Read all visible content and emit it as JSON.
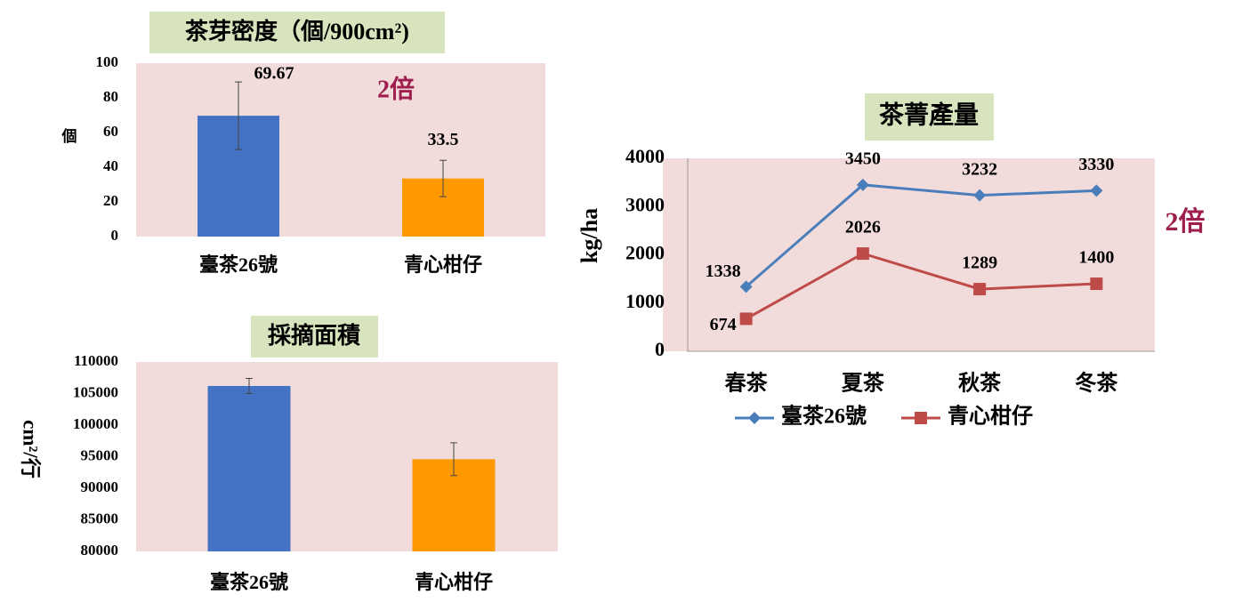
{
  "chart_data": [
    {
      "type": "bar",
      "title": "茶芽密度（個/900cm²)",
      "ylabel": "個",
      "categories": [
        "臺茶26號",
        "青心柑仔"
      ],
      "values": [
        69.67,
        33.5
      ],
      "errors": [
        19.5,
        10.5
      ],
      "colors": [
        "#4472c4",
        "#ff9900"
      ],
      "show_values": true,
      "ylim": [
        0,
        100
      ],
      "yticks": [
        0,
        20,
        40,
        60,
        80,
        100
      ],
      "annotation": "2倍"
    },
    {
      "type": "bar",
      "title": "採摘面積",
      "ylabel": "cm²/行",
      "categories": [
        "臺茶26號",
        "青心柑仔"
      ],
      "values": [
        106200,
        94600
      ],
      "errors": [
        1200,
        2600
      ],
      "colors": [
        "#4472c4",
        "#ff9900"
      ],
      "show_values": false,
      "ylim": [
        80000,
        110000
      ],
      "yticks": [
        80000,
        85000,
        90000,
        95000,
        100000,
        105000,
        110000
      ]
    },
    {
      "type": "line",
      "title": "茶菁產量",
      "ylabel": "kg/ha",
      "categories": [
        "春茶",
        "夏茶",
        "秋茶",
        "冬茶"
      ],
      "series": [
        {
          "name": "臺茶26號",
          "color": "#4a7ebb",
          "marker": "diamond",
          "values": [
            1338,
            3450,
            3232,
            3330
          ]
        },
        {
          "name": "青心柑仔",
          "color": "#be4b48",
          "marker": "square",
          "values": [
            674,
            2026,
            1289,
            1400
          ]
        }
      ],
      "ylim": [
        0,
        4000
      ],
      "yticks": [
        0,
        1000,
        2000,
        3000,
        4000
      ],
      "legend": "bottom",
      "annotation": "2倍"
    }
  ]
}
